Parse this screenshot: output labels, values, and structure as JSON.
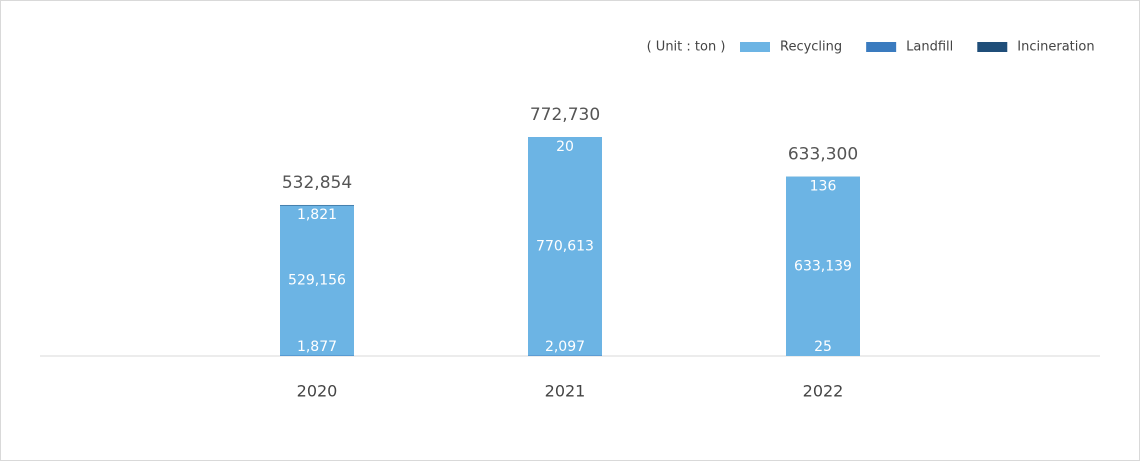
{
  "chart_data": {
    "type": "stacked-bar",
    "unit": "( Unit : ton )",
    "categories": [
      "2020",
      "2021",
      "2022"
    ],
    "series": [
      {
        "name": "Landfill",
        "color": "#3a7bbf",
        "values": [
          1877,
          2097,
          25
        ],
        "value_labels": [
          "1,877",
          "2,097",
          "25"
        ]
      },
      {
        "name": "Recycling",
        "color": "#6cb4e4",
        "values": [
          529156,
          770613,
          633139
        ],
        "value_labels": [
          "529,156",
          "770,613",
          "633,139"
        ]
      },
      {
        "name": "Incineration",
        "color": "#1f4e79",
        "values": [
          1821,
          20,
          136
        ],
        "value_labels": [
          "1,821",
          "20",
          "136"
        ]
      }
    ],
    "totals": [
      532854,
      772730,
      633300
    ],
    "total_labels": [
      "532,854",
      "772,730",
      "633,300"
    ],
    "legend_order": [
      1,
      0,
      2
    ]
  }
}
